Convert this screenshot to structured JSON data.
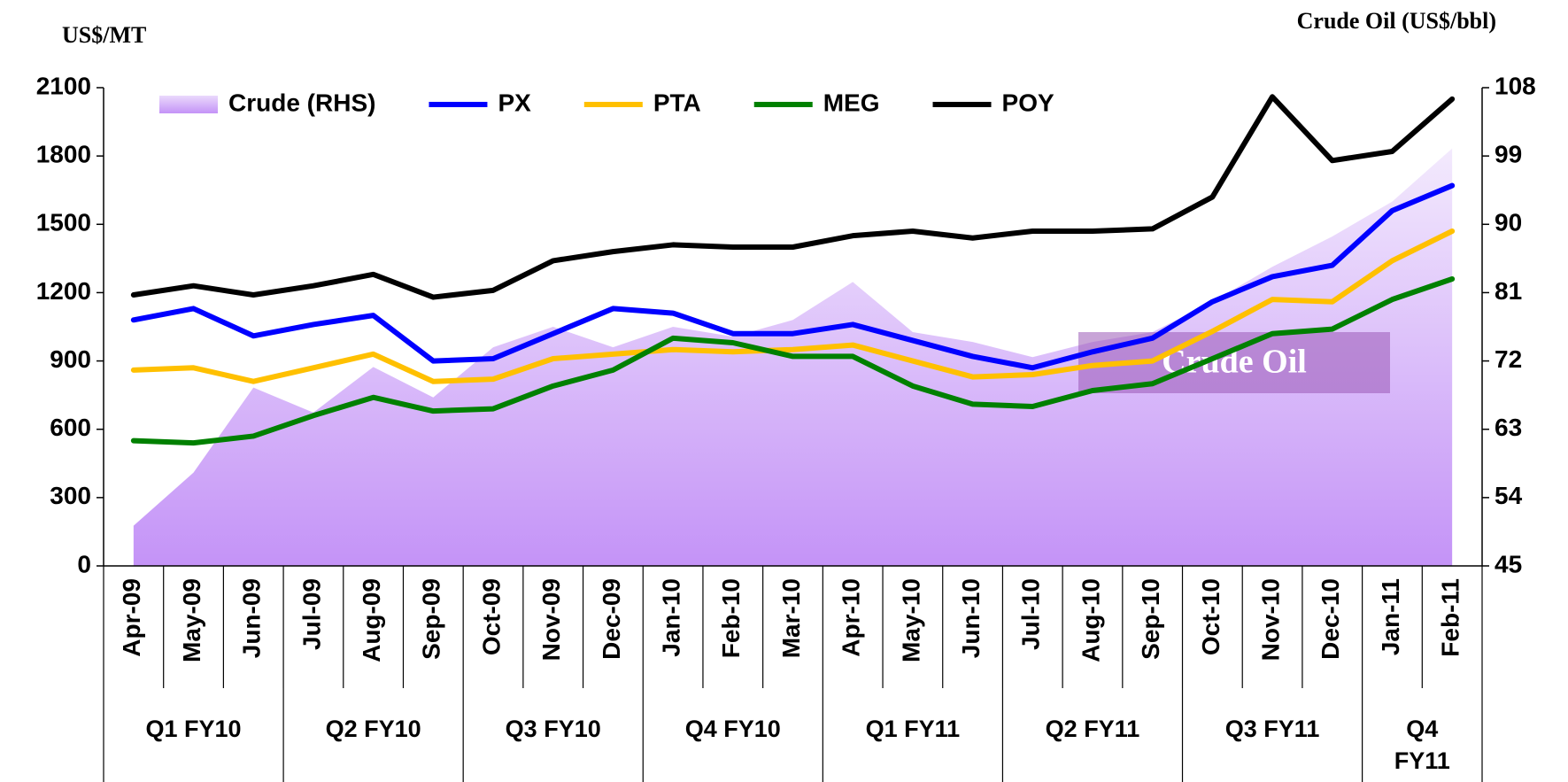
{
  "chart_data": {
    "type": "line",
    "y_label": "US$/MT",
    "y2_label": "Crude Oil (US$/bbl)",
    "annotation": "Crude Oil",
    "categories": [
      "Apr-09",
      "May-09",
      "Jun-09",
      "Jul-09",
      "Aug-09",
      "Sep-09",
      "Oct-09",
      "Nov-09",
      "Dec-09",
      "Jan-10",
      "Feb-10",
      "Mar-10",
      "Apr-10",
      "May-10",
      "Jun-10",
      "Jul-10",
      "Aug-10",
      "Sep-10",
      "Oct-10",
      "Nov-10",
      "Dec-10",
      "Jan-11",
      "Feb-11"
    ],
    "category_groups": [
      "Q1 FY10",
      "Q2 FY10",
      "Q3 FY10",
      "Q4 FY10",
      "Q1 FY11",
      "Q2 FY11",
      "Q3 FY11",
      "Q4 FY11"
    ],
    "ylim": [
      0,
      2100
    ],
    "yticks": [
      0,
      300,
      600,
      900,
      1200,
      1500,
      1800,
      2100
    ],
    "y2lim": [
      45,
      108
    ],
    "y2ticks": [
      45,
      54,
      63,
      72,
      81,
      90,
      99,
      108
    ],
    "legend": "top",
    "series": [
      {
        "name": "Crude (RHS)",
        "type": "area",
        "axis": "y2",
        "color": "#c69cf7",
        "values": [
          50.3,
          57.3,
          68.5,
          65.2,
          71.2,
          67.2,
          73.8,
          76.5,
          73.8,
          76.5,
          75.2,
          77.4,
          82.4,
          75.8,
          74.5,
          72.5,
          74.5,
          75.8,
          79.8,
          84.4,
          88.4,
          93,
          100
        ]
      },
      {
        "name": "PX",
        "color": "#0000ff",
        "values": [
          1080,
          1130,
          1010,
          1060,
          1100,
          900,
          910,
          1020,
          1130,
          1110,
          1020,
          1020,
          1060,
          990,
          920,
          870,
          940,
          1000,
          1160,
          1270,
          1320,
          1560,
          1670
        ]
      },
      {
        "name": "PTA",
        "color": "#ffc000",
        "values": [
          860,
          870,
          810,
          870,
          930,
          810,
          820,
          910,
          930,
          950,
          940,
          950,
          970,
          900,
          830,
          840,
          880,
          900,
          1030,
          1170,
          1160,
          1340,
          1470
        ]
      },
      {
        "name": "MEG",
        "color": "#008000",
        "values": [
          550,
          540,
          570,
          660,
          740,
          680,
          690,
          790,
          860,
          1000,
          980,
          920,
          920,
          790,
          710,
          700,
          770,
          800,
          910,
          1020,
          1040,
          1170,
          1260
        ]
      },
      {
        "name": "POY",
        "color": "#000000",
        "values": [
          1190,
          1230,
          1190,
          1230,
          1280,
          1180,
          1210,
          1340,
          1380,
          1410,
          1400,
          1400,
          1450,
          1470,
          1440,
          1470,
          1470,
          1480,
          1620,
          2060,
          1780,
          1820,
          2050
        ]
      }
    ]
  }
}
